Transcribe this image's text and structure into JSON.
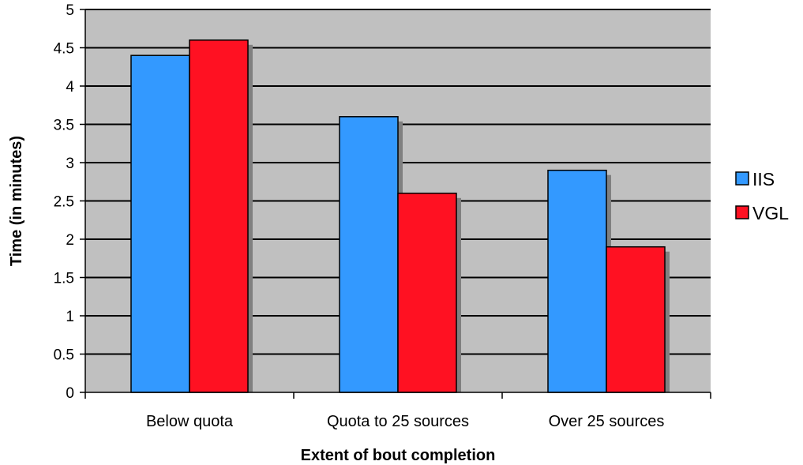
{
  "chart_data": {
    "type": "bar",
    "title": "",
    "xlabel": "Extent of bout completion",
    "ylabel": "Time (in minutes)",
    "categories": [
      "Below quota",
      "Quota to 25 sources",
      "Over 25 sources"
    ],
    "series": [
      {
        "name": "IIS",
        "values": [
          4.4,
          3.6,
          2.9
        ]
      },
      {
        "name": "VGL",
        "values": [
          4.6,
          2.6,
          1.9
        ]
      }
    ],
    "ylim": [
      0,
      5
    ],
    "yticks": [
      "0",
      "0.5",
      "1",
      "1.5",
      "2",
      "2.5",
      "3",
      "3.5",
      "4",
      "4.5",
      "5"
    ],
    "grid": "horizontal",
    "legend_position": "right",
    "colors": {
      "plot_background": "#c0c0c0",
      "IIS": "#3399ff",
      "VGL": "#ff1122",
      "bar_shadow": "#808080"
    }
  }
}
